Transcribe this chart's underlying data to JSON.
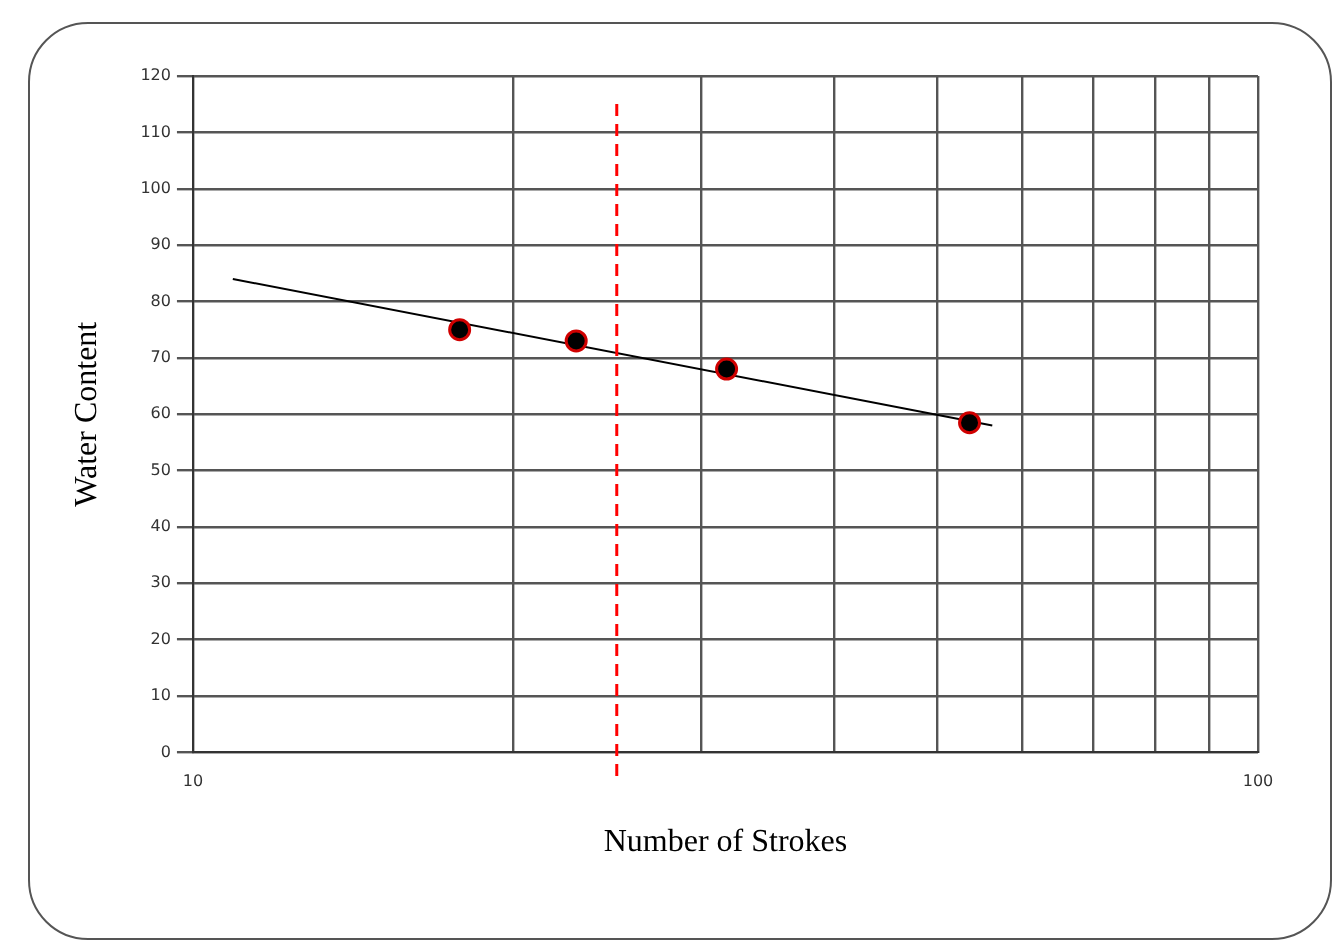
{
  "chart_data": {
    "type": "scatter",
    "xlabel": "Number of Strokes",
    "ylabel": "Water Content",
    "log": "x",
    "xlim": [
      10,
      100
    ],
    "xticks": [
      10,
      {
        "value": 20,
        "label": null
      },
      {
        "value": 30,
        "label": null
      },
      {
        "value": 40,
        "label": null
      },
      {
        "value": 50,
        "label": null
      },
      {
        "value": 60,
        "label": null
      },
      {
        "value": 70,
        "label": null
      },
      {
        "value": 80,
        "label": null
      },
      {
        "value": 90,
        "label": null
      },
      100
    ],
    "ylim": [
      0,
      120
    ],
    "yticks": [
      0,
      10,
      20,
      30,
      40,
      50,
      60,
      70,
      80,
      90,
      100,
      110,
      120
    ],
    "grid": true,
    "legend": false,
    "marker": "circle",
    "series": [
      {
        "type": "scatter",
        "x": [
          17.8,
          22.9,
          31.7,
          53.6
        ],
        "values": [
          75,
          73,
          68,
          58.5
        ],
        "color": "#000000"
      },
      {
        "type": "line",
        "x": [
          10.9,
          56.3
        ],
        "values": [
          84,
          58
        ],
        "color": "#000000",
        "marker": "none",
        "line_style": "solid"
      }
    ],
    "ref_lines": [
      {
        "axis": "x",
        "value": 25,
        "color": "#ff0000",
        "line_style": "dashed"
      }
    ]
  }
}
